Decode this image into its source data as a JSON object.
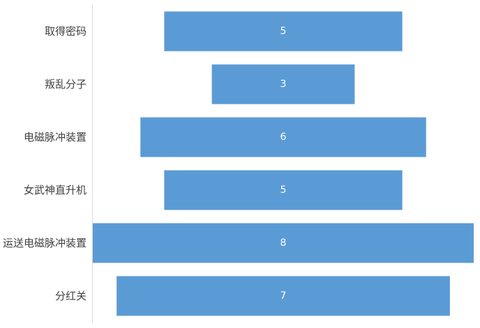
{
  "chart_data": {
    "type": "bar",
    "orientation": "horizontal",
    "style": "funnel (bars centered)",
    "categories": [
      "取得密码",
      "叛乱分子",
      "电磁脉冲装置",
      "女武神直升机",
      "运送电磁脉冲装置",
      "分红关"
    ],
    "values": [
      5,
      3,
      6,
      5,
      8,
      7
    ],
    "title": "",
    "xlabel": "",
    "ylabel": "",
    "grid": false,
    "legend": "none",
    "data_labels": true,
    "colors": {
      "bar": "#5b9bd5",
      "axis": "#d9d9d9",
      "category_text": "#404040",
      "value_text": "#ffffff"
    }
  }
}
